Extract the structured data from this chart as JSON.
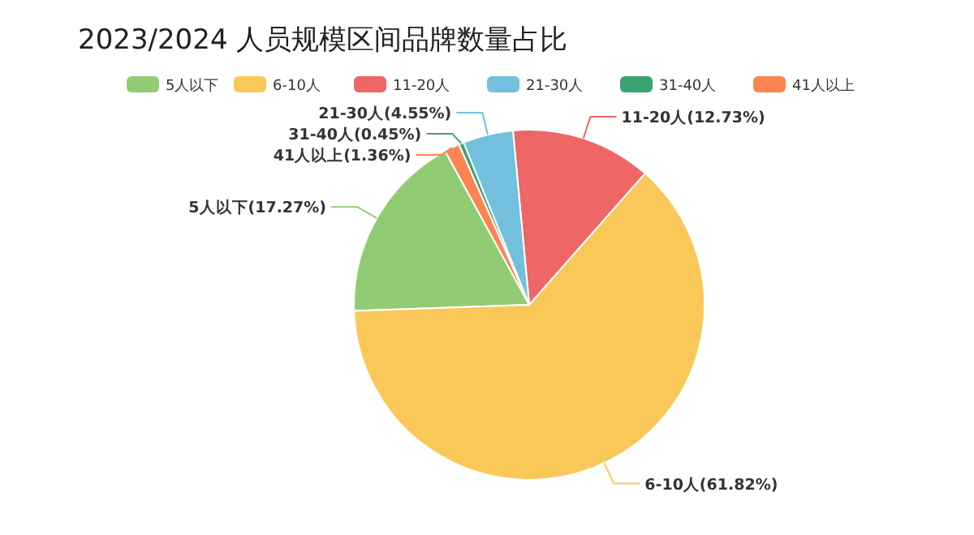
{
  "chart_data": {
    "type": "pie",
    "title": "2023/2024 人员规模区间品牌数量占比",
    "categories": [
      "5人以下",
      "6-10人",
      "11-20人",
      "21-30人",
      "31-40人",
      "41人以上"
    ],
    "values": [
      17.27,
      61.82,
      12.73,
      4.55,
      0.45,
      1.36
    ],
    "colors": [
      "#91cc75",
      "#fac858",
      "#ee6666",
      "#73c0de",
      "#3ba272",
      "#fc8452"
    ],
    "value_labels": [
      "5人以下(17.27%)",
      "6-10人(61.82%)",
      "11-20人(12.73%)",
      "21-30人(4.55%)",
      "31-40人(0.45%)",
      "41人以上(1.36%)"
    ],
    "legend": "top"
  }
}
